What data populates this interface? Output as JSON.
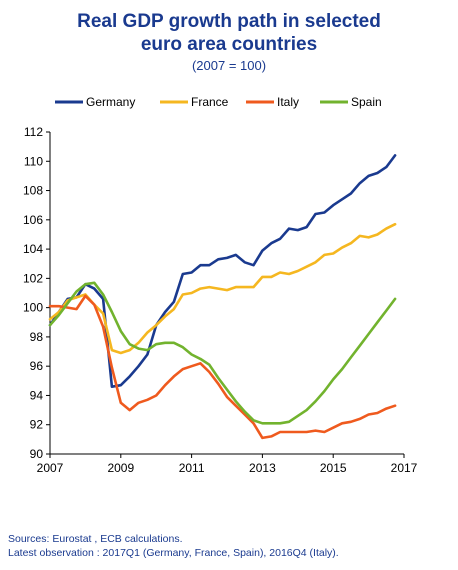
{
  "chart_data": {
    "type": "line",
    "title_lines": [
      "Real GDP growth path in selected",
      "euro area countries"
    ],
    "subtitle": "(2007 = 100)",
    "xlabel": "",
    "ylabel": "",
    "xlim": [
      2007,
      2017
    ],
    "ylim": [
      90,
      112
    ],
    "x_ticks": [
      2007,
      2009,
      2011,
      2013,
      2015,
      2017
    ],
    "y_ticks": [
      90,
      92,
      94,
      96,
      98,
      100,
      102,
      104,
      106,
      108,
      110,
      112
    ],
    "grid": false,
    "legend_position": "top",
    "x_step": 0.25,
    "x_start": 2007,
    "series": [
      {
        "name": "Germany",
        "color": "#1a3a8f",
        "values": [
          98.8,
          99.7,
          100.6,
          100.7,
          101.6,
          101.3,
          100.6,
          94.6,
          94.7,
          95.3,
          96.0,
          96.8,
          98.8,
          99.7,
          100.4,
          102.3,
          102.4,
          102.9,
          102.9,
          103.3,
          103.4,
          103.6,
          103.1,
          102.9,
          103.9,
          104.4,
          104.7,
          105.4,
          105.3,
          105.5,
          106.4,
          106.5,
          107.0,
          107.4,
          107.8,
          108.5,
          109.0,
          109.2,
          109.6,
          110.4
        ]
      },
      {
        "name": "France",
        "color": "#f5b720",
        "values": [
          99.2,
          99.7,
          100.5,
          100.7,
          100.9,
          100.2,
          99.6,
          97.1,
          96.9,
          97.1,
          97.6,
          98.3,
          98.8,
          99.4,
          99.9,
          100.9,
          101.0,
          101.3,
          101.4,
          101.3,
          101.2,
          101.4,
          101.4,
          101.4,
          102.1,
          102.1,
          102.4,
          102.3,
          102.5,
          102.8,
          103.1,
          103.6,
          103.7,
          104.1,
          104.4,
          104.9,
          104.8,
          105.0,
          105.4,
          105.7
        ]
      },
      {
        "name": "Italy",
        "color": "#ef5a1e",
        "values": [
          100.1,
          100.1,
          100.0,
          99.9,
          100.8,
          100.2,
          98.7,
          95.9,
          93.5,
          93.0,
          93.5,
          93.7,
          94.0,
          94.7,
          95.3,
          95.8,
          96.0,
          96.2,
          95.6,
          94.8,
          93.9,
          93.3,
          92.7,
          92.1,
          91.1,
          91.2,
          91.5,
          91.5,
          91.5,
          91.5,
          91.6,
          91.5,
          91.8,
          92.1,
          92.2,
          92.4,
          92.7,
          92.8,
          93.1,
          93.3
        ]
      },
      {
        "name": "Spain",
        "color": "#72b32e",
        "values": [
          98.8,
          99.5,
          100.3,
          101.1,
          101.6,
          101.7,
          100.9,
          99.7,
          98.4,
          97.5,
          97.2,
          97.1,
          97.5,
          97.6,
          97.6,
          97.3,
          96.8,
          96.5,
          96.1,
          95.2,
          94.4,
          93.6,
          92.9,
          92.3,
          92.1,
          92.1,
          92.1,
          92.2,
          92.6,
          93.0,
          93.6,
          94.3,
          95.1,
          95.8,
          96.6,
          97.4,
          98.2,
          99.0,
          99.8,
          100.6
        ]
      }
    ]
  },
  "footer": {
    "sources": "Sources: Eurostat , ECB calculations.",
    "latest": "Latest observation : 2017Q1 (Germany, France, Spain), 2016Q4 (Italy)."
  }
}
